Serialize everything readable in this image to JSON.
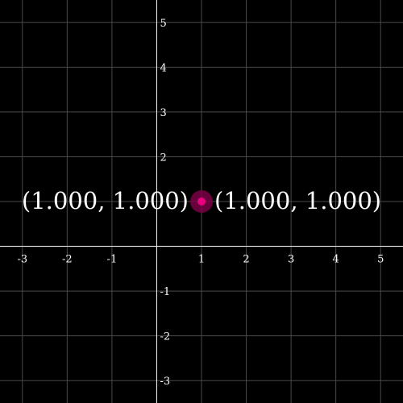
{
  "graph": {
    "x_range": [
      -3.5,
      5.5
    ],
    "y_range": [
      -3.5,
      5.5
    ],
    "grid": true,
    "x_ticks": [
      {
        "value": -3,
        "label": "-3"
      },
      {
        "value": -2,
        "label": "-2"
      },
      {
        "value": -1,
        "label": "-1"
      },
      {
        "value": 1,
        "label": "1"
      },
      {
        "value": 2,
        "label": "2"
      },
      {
        "value": 3,
        "label": "3"
      },
      {
        "value": 4,
        "label": "4"
      },
      {
        "value": 5,
        "label": "5"
      }
    ],
    "y_ticks": [
      {
        "value": 5,
        "label": "5"
      },
      {
        "value": 4,
        "label": "4"
      },
      {
        "value": 3,
        "label": "3"
      },
      {
        "value": 2,
        "label": "2"
      },
      {
        "value": 1,
        "label": ""
      },
      {
        "value": -1,
        "label": "-1"
      },
      {
        "value": -2,
        "label": "-2"
      },
      {
        "value": -3,
        "label": "-3"
      }
    ],
    "point": {
      "x": 1,
      "y": 1,
      "color": "#e6007e",
      "halo_color": "#7a0045"
    },
    "labels": {
      "left": "(1.000, 1.000)",
      "right": "(1.000, 1.000)"
    },
    "colors": {
      "background": "#000000",
      "grid": "#4a4a4a",
      "axis": "#ffffff",
      "text": "#ffffff"
    }
  }
}
